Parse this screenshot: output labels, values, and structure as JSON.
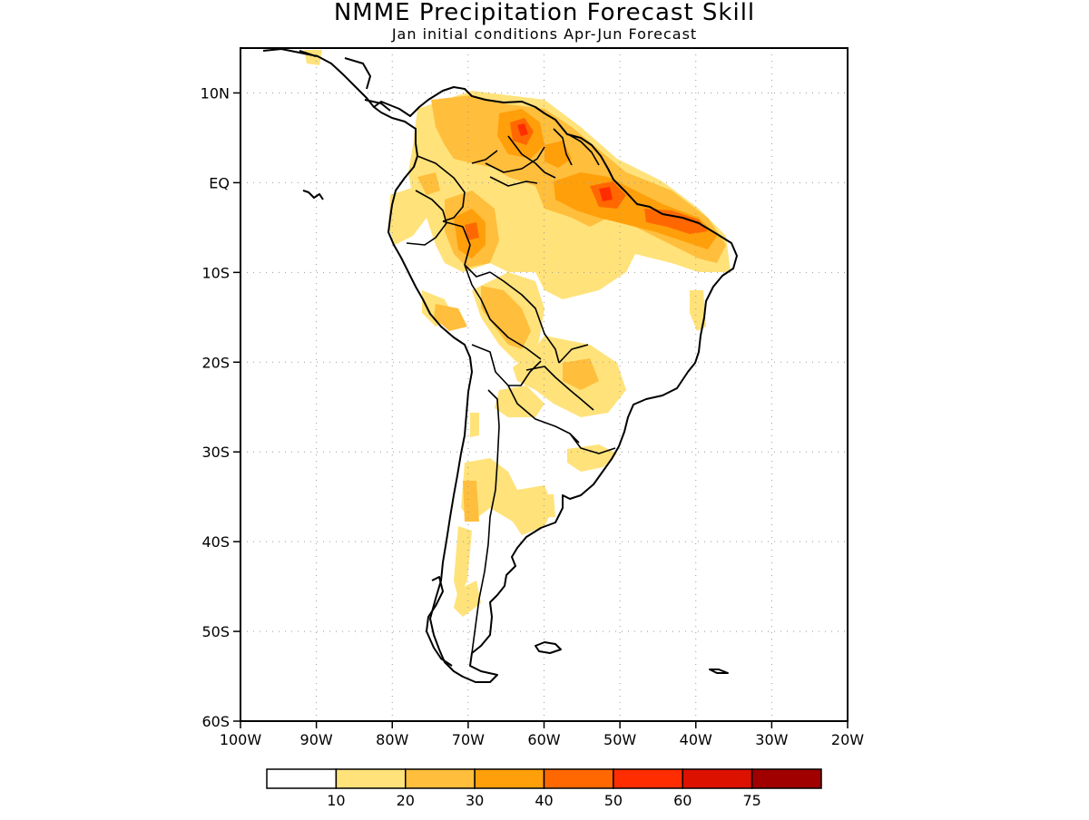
{
  "title": "NMME Precipitation Forecast Skill",
  "subtitle": "Jan initial conditions  Apr-Jun Forecast",
  "map": {
    "lon_range": [
      -100,
      -20
    ],
    "lat_range": [
      -60,
      15
    ],
    "lat_labels": [
      "10N",
      "EQ",
      "10S",
      "20S",
      "30S",
      "40S",
      "50S",
      "60S"
    ],
    "lat_values": [
      10,
      0,
      -10,
      -20,
      -30,
      -40,
      -50,
      -60
    ],
    "lon_labels": [
      "100W",
      "90W",
      "80W",
      "70W",
      "60W",
      "50W",
      "40W",
      "30W",
      "20W"
    ],
    "lon_values": [
      -100,
      -90,
      -80,
      -70,
      -60,
      -50,
      -40,
      -30,
      -20
    ],
    "grid": "dotted"
  },
  "legend": {
    "bins": [
      {
        "color": "#ffffff"
      },
      {
        "color": "#ffe27a"
      },
      {
        "color": "#ffbe3c"
      },
      {
        "color": "#ff9f0a"
      },
      {
        "color": "#ff6800"
      },
      {
        "color": "#ff2d00"
      },
      {
        "color": "#dd1100"
      },
      {
        "color": "#a00000"
      }
    ],
    "tick_labels": [
      "10",
      "20",
      "30",
      "40",
      "50",
      "60",
      "75"
    ]
  },
  "colors": {
    "outline": "#000000",
    "background": "#ffffff"
  }
}
